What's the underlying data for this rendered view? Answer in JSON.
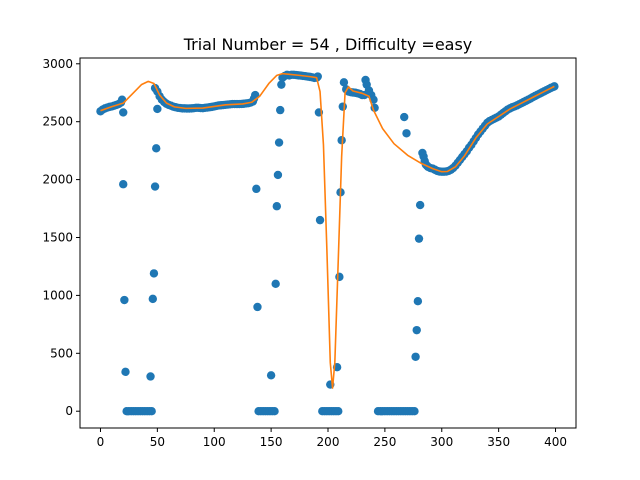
{
  "chart_data": {
    "type": "scatter",
    "title": "Trial Number = 54  , Difficulty =easy",
    "xlabel": "",
    "ylabel": "",
    "xlim": [
      -18,
      418
    ],
    "ylim": [
      -145,
      3050
    ],
    "xticks": [
      0,
      50,
      100,
      150,
      200,
      250,
      300,
      350,
      400
    ],
    "yticks": [
      0,
      500,
      1000,
      1500,
      2000,
      2500,
      3000
    ],
    "grid": false,
    "colors": {
      "scatter": "#1f77b4",
      "fit": "#ff7f0e"
    },
    "series": [
      {
        "kind": "scatter",
        "points": [
          [
            0,
            2590
          ],
          [
            2,
            2605
          ],
          [
            4,
            2615
          ],
          [
            6,
            2622
          ],
          [
            8,
            2628
          ],
          [
            10,
            2632
          ],
          [
            12,
            2638
          ],
          [
            14,
            2645
          ],
          [
            16,
            2652
          ],
          [
            18,
            2665
          ],
          [
            19,
            2690
          ],
          [
            20,
            2580
          ],
          [
            20,
            1960
          ],
          [
            21,
            960
          ],
          [
            22,
            340
          ],
          [
            23,
            0
          ],
          [
            25,
            0
          ],
          [
            27,
            0
          ],
          [
            29,
            0
          ],
          [
            31,
            0
          ],
          [
            33,
            0
          ],
          [
            35,
            0
          ],
          [
            37,
            0
          ],
          [
            39,
            0
          ],
          [
            41,
            0
          ],
          [
            43,
            0
          ],
          [
            44,
            300
          ],
          [
            45,
            0
          ],
          [
            46,
            970
          ],
          [
            47,
            1190
          ],
          [
            48,
            1940
          ],
          [
            49,
            2270
          ],
          [
            50,
            2610
          ],
          [
            48,
            2790
          ],
          [
            50,
            2760
          ],
          [
            52,
            2720
          ],
          [
            54,
            2690
          ],
          [
            56,
            2670
          ],
          [
            58,
            2655
          ],
          [
            60,
            2645
          ],
          [
            62,
            2638
          ],
          [
            64,
            2630
          ],
          [
            66,
            2625
          ],
          [
            68,
            2620
          ],
          [
            70,
            2618
          ],
          [
            72,
            2615
          ],
          [
            74,
            2615
          ],
          [
            76,
            2614
          ],
          [
            78,
            2614
          ],
          [
            80,
            2615
          ],
          [
            82,
            2617
          ],
          [
            84,
            2620
          ],
          [
            86,
            2620
          ],
          [
            88,
            2618
          ],
          [
            90,
            2617
          ],
          [
            92,
            2620
          ],
          [
            94,
            2622
          ],
          [
            96,
            2625
          ],
          [
            98,
            2628
          ],
          [
            100,
            2632
          ],
          [
            102,
            2636
          ],
          [
            104,
            2640
          ],
          [
            106,
            2642
          ],
          [
            108,
            2644
          ],
          [
            110,
            2646
          ],
          [
            112,
            2648
          ],
          [
            114,
            2650
          ],
          [
            116,
            2652
          ],
          [
            118,
            2652
          ],
          [
            120,
            2652
          ],
          [
            122,
            2652
          ],
          [
            124,
            2653
          ],
          [
            126,
            2655
          ],
          [
            128,
            2658
          ],
          [
            130,
            2660
          ],
          [
            132,
            2665
          ],
          [
            134,
            2675
          ],
          [
            135,
            2700
          ],
          [
            136,
            2730
          ],
          [
            137,
            1920
          ],
          [
            138,
            900
          ],
          [
            139,
            0
          ],
          [
            141,
            0
          ],
          [
            143,
            0
          ],
          [
            145,
            0
          ],
          [
            147,
            0
          ],
          [
            149,
            0
          ],
          [
            150,
            310
          ],
          [
            151,
            0
          ],
          [
            153,
            0
          ],
          [
            154,
            1100
          ],
          [
            155,
            1770
          ],
          [
            156,
            2040
          ],
          [
            157,
            2320
          ],
          [
            158,
            2600
          ],
          [
            159,
            2820
          ],
          [
            160,
            2880
          ],
          [
            162,
            2895
          ],
          [
            164,
            2905
          ],
          [
            166,
            2900
          ],
          [
            168,
            2905
          ],
          [
            170,
            2905
          ],
          [
            172,
            2903
          ],
          [
            174,
            2900
          ],
          [
            176,
            2898
          ],
          [
            178,
            2895
          ],
          [
            180,
            2893
          ],
          [
            182,
            2890
          ],
          [
            184,
            2887
          ],
          [
            186,
            2883
          ],
          [
            188,
            2878
          ],
          [
            190,
            2880
          ],
          [
            191,
            2890
          ],
          [
            192,
            2580
          ],
          [
            193,
            1650
          ],
          [
            195,
            0
          ],
          [
            197,
            0
          ],
          [
            199,
            0
          ],
          [
            201,
            0
          ],
          [
            202,
            230
          ],
          [
            203,
            0
          ],
          [
            205,
            0
          ],
          [
            207,
            0
          ],
          [
            208,
            380
          ],
          [
            209,
            0
          ],
          [
            210,
            1160
          ],
          [
            211,
            1890
          ],
          [
            212,
            2340
          ],
          [
            213,
            2630
          ],
          [
            214,
            2840
          ],
          [
            216,
            2780
          ],
          [
            218,
            2760
          ],
          [
            220,
            2755
          ],
          [
            222,
            2752
          ],
          [
            224,
            2750
          ],
          [
            226,
            2745
          ],
          [
            228,
            2740
          ],
          [
            230,
            2730
          ],
          [
            232,
            2730
          ],
          [
            233,
            2860
          ],
          [
            234,
            2820
          ],
          [
            236,
            2770
          ],
          [
            238,
            2730
          ],
          [
            240,
            2690
          ],
          [
            241,
            2620
          ],
          [
            244,
            0
          ],
          [
            246,
            0
          ],
          [
            248,
            0
          ],
          [
            250,
            0
          ],
          [
            252,
            0
          ],
          [
            254,
            0
          ],
          [
            256,
            0
          ],
          [
            258,
            0
          ],
          [
            260,
            0
          ],
          [
            262,
            0
          ],
          [
            264,
            0
          ],
          [
            266,
            0
          ],
          [
            268,
            0
          ],
          [
            270,
            0
          ],
          [
            272,
            0
          ],
          [
            274,
            0
          ],
          [
            276,
            0
          ],
          [
            267,
            2540
          ],
          [
            269,
            2400
          ],
          [
            277,
            470
          ],
          [
            278,
            700
          ],
          [
            279,
            950
          ],
          [
            280,
            1490
          ],
          [
            281,
            1780
          ],
          [
            283,
            2230
          ],
          [
            284,
            2200
          ],
          [
            285,
            2160
          ],
          [
            286,
            2130
          ],
          [
            287,
            2120
          ],
          [
            288,
            2110
          ],
          [
            290,
            2100
          ],
          [
            292,
            2095
          ],
          [
            294,
            2085
          ],
          [
            296,
            2075
          ],
          [
            298,
            2070
          ],
          [
            300,
            2068
          ],
          [
            302,
            2068
          ],
          [
            304,
            2070
          ],
          [
            306,
            2075
          ],
          [
            308,
            2085
          ],
          [
            310,
            2100
          ],
          [
            312,
            2120
          ],
          [
            314,
            2145
          ],
          [
            316,
            2170
          ],
          [
            318,
            2195
          ],
          [
            320,
            2220
          ],
          [
            322,
            2245
          ],
          [
            324,
            2275
          ],
          [
            326,
            2300
          ],
          [
            328,
            2330
          ],
          [
            330,
            2360
          ],
          [
            332,
            2390
          ],
          [
            334,
            2415
          ],
          [
            336,
            2440
          ],
          [
            338,
            2465
          ],
          [
            340,
            2490
          ],
          [
            342,
            2505
          ],
          [
            344,
            2515
          ],
          [
            346,
            2525
          ],
          [
            348,
            2535
          ],
          [
            350,
            2545
          ],
          [
            352,
            2560
          ],
          [
            354,
            2575
          ],
          [
            356,
            2590
          ],
          [
            358,
            2605
          ],
          [
            360,
            2615
          ],
          [
            362,
            2625
          ],
          [
            364,
            2632
          ],
          [
            366,
            2640
          ],
          [
            368,
            2650
          ],
          [
            370,
            2660
          ],
          [
            372,
            2670
          ],
          [
            374,
            2680
          ],
          [
            376,
            2690
          ],
          [
            378,
            2700
          ],
          [
            380,
            2712
          ],
          [
            382,
            2722
          ],
          [
            384,
            2732
          ],
          [
            386,
            2742
          ],
          [
            388,
            2752
          ],
          [
            390,
            2762
          ],
          [
            392,
            2772
          ],
          [
            394,
            2782
          ],
          [
            396,
            2792
          ],
          [
            398,
            2800
          ],
          [
            399,
            2805
          ]
        ]
      },
      {
        "kind": "line",
        "points": [
          [
            0,
            2595
          ],
          [
            10,
            2630
          ],
          [
            20,
            2660
          ],
          [
            28,
            2740
          ],
          [
            36,
            2820
          ],
          [
            42,
            2848
          ],
          [
            47,
            2830
          ],
          [
            52,
            2730
          ],
          [
            58,
            2660
          ],
          [
            65,
            2628
          ],
          [
            75,
            2615
          ],
          [
            90,
            2618
          ],
          [
            110,
            2646
          ],
          [
            125,
            2653
          ],
          [
            133,
            2668
          ],
          [
            140,
            2720
          ],
          [
            148,
            2830
          ],
          [
            155,
            2900
          ],
          [
            160,
            2915
          ],
          [
            165,
            2910
          ],
          [
            175,
            2900
          ],
          [
            185,
            2888
          ],
          [
            190,
            2880
          ],
          [
            193,
            2760
          ],
          [
            196,
            2300
          ],
          [
            199,
            1400
          ],
          [
            202,
            420
          ],
          [
            204,
            200
          ],
          [
            206,
            420
          ],
          [
            209,
            1300
          ],
          [
            212,
            2200
          ],
          [
            215,
            2750
          ],
          [
            218,
            2800
          ],
          [
            222,
            2765
          ],
          [
            230,
            2745
          ],
          [
            236,
            2720
          ],
          [
            240,
            2600
          ],
          [
            248,
            2440
          ],
          [
            258,
            2310
          ],
          [
            270,
            2210
          ],
          [
            282,
            2140
          ],
          [
            292,
            2095
          ],
          [
            300,
            2068
          ],
          [
            305,
            2070
          ],
          [
            312,
            2110
          ],
          [
            320,
            2205
          ],
          [
            330,
            2360
          ],
          [
            340,
            2480
          ],
          [
            350,
            2545
          ],
          [
            360,
            2610
          ],
          [
            370,
            2660
          ],
          [
            380,
            2710
          ],
          [
            390,
            2760
          ],
          [
            399,
            2805
          ]
        ]
      }
    ]
  }
}
